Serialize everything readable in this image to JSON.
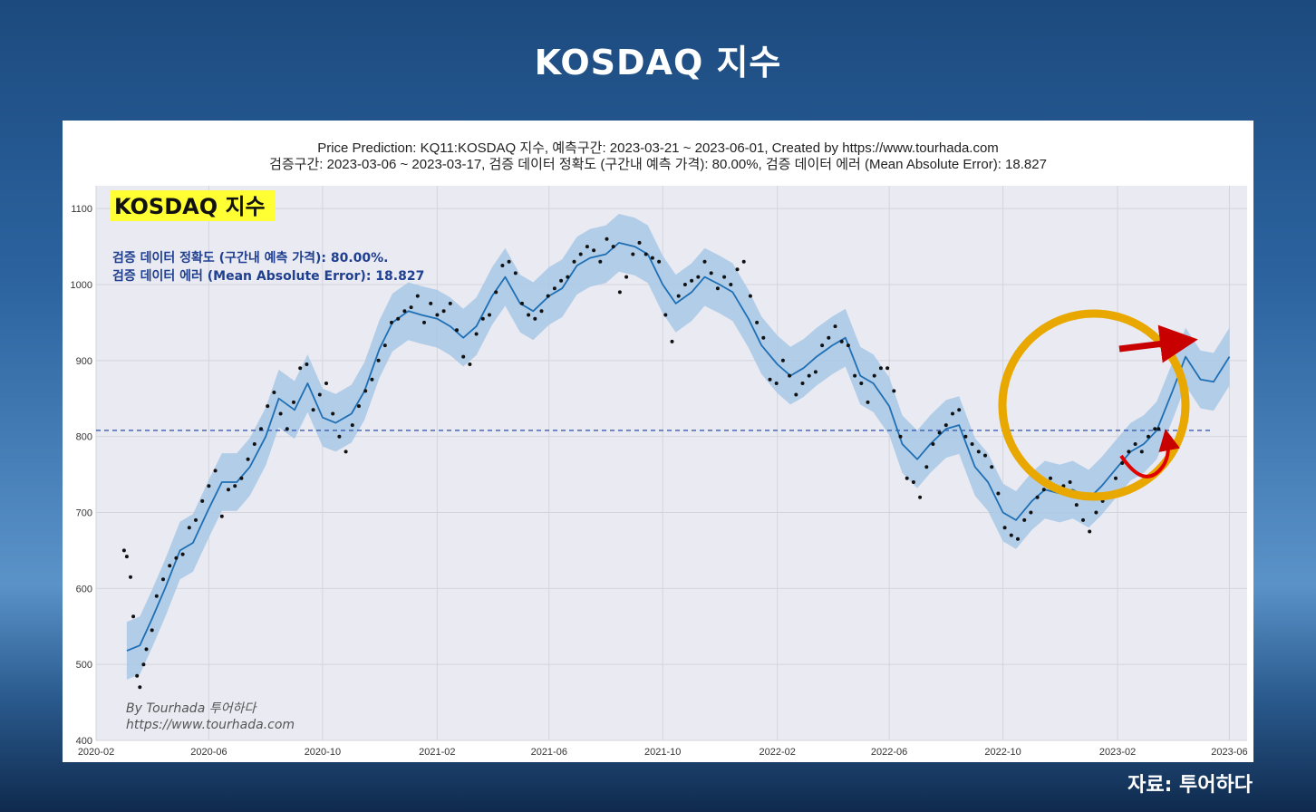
{
  "page": {
    "title": "KOSDAQ 지수",
    "source": "자료: 투어하다"
  },
  "chart_data": {
    "type": "line",
    "title_line1": "Price Prediction: KQ11:KOSDAQ 지수, 예측구간: 2023-03-21 ~ 2023-06-01, Created by https://www.tourhada.com",
    "title_line2": "검증구간: 2023-03-06 ~ 2023-03-17, 검증 데이터 정확도 (구간내 예측 가격): 80.00%, 검증 데이터 에러 (Mean Absolute Error): 18.827",
    "badge": "KOSDAQ 지수",
    "metric_line1": "검증 데이터 정확도 (구간내 예측 가격): 80.00%.",
    "metric_line2": "검증 데이터 에러 (Mean Absolute Error): 18.827",
    "watermark_line1": "By Tourhada 투어하다",
    "watermark_line2": "https://www.tourhada.com",
    "x_range": [
      "2020-02-01",
      "2023-06-20"
    ],
    "ylim": [
      400,
      1130
    ],
    "x_ticks": [
      "2020-02",
      "2020-06",
      "2020-10",
      "2021-02",
      "2021-06",
      "2021-10",
      "2022-02",
      "2022-06",
      "2022-10",
      "2023-02",
      "2023-06"
    ],
    "y_ticks": [
      400,
      500,
      600,
      700,
      800,
      900,
      1000,
      1100
    ],
    "reference_line": 808,
    "grid": true,
    "band_width": 38,
    "colors": {
      "prediction": "#1f6fb4",
      "band": "#a8c8e6",
      "actual": "#111111",
      "reference": "#3b5cad",
      "highlight_circle": "#e8a800",
      "arrow": "#c80000",
      "plot_bg": "#eaeaf2",
      "badge_bg": "#ffff33"
    },
    "prediction_series": [
      [
        "2020-03-05",
        518
      ],
      [
        "2020-03-19",
        525
      ],
      [
        "2020-04-01",
        560
      ],
      [
        "2020-04-15",
        600
      ],
      [
        "2020-05-01",
        650
      ],
      [
        "2020-05-15",
        660
      ],
      [
        "2020-06-01",
        705
      ],
      [
        "2020-06-15",
        740
      ],
      [
        "2020-07-01",
        740
      ],
      [
        "2020-07-15",
        760
      ],
      [
        "2020-08-01",
        800
      ],
      [
        "2020-08-15",
        850
      ],
      [
        "2020-09-01",
        835
      ],
      [
        "2020-09-15",
        870
      ],
      [
        "2020-10-01",
        825
      ],
      [
        "2020-10-15",
        818
      ],
      [
        "2020-11-01",
        830
      ],
      [
        "2020-11-15",
        860
      ],
      [
        "2020-12-01",
        915
      ],
      [
        "2020-12-15",
        950
      ],
      [
        "2021-01-01",
        965
      ],
      [
        "2021-01-15",
        960
      ],
      [
        "2021-02-01",
        955
      ],
      [
        "2021-02-15",
        945
      ],
      [
        "2021-03-01",
        930
      ],
      [
        "2021-03-15",
        945
      ],
      [
        "2021-04-01",
        985
      ],
      [
        "2021-04-15",
        1010
      ],
      [
        "2021-05-01",
        975
      ],
      [
        "2021-05-15",
        965
      ],
      [
        "2021-06-01",
        985
      ],
      [
        "2021-06-15",
        995
      ],
      [
        "2021-07-01",
        1025
      ],
      [
        "2021-07-15",
        1035
      ],
      [
        "2021-08-01",
        1040
      ],
      [
        "2021-08-15",
        1055
      ],
      [
        "2021-09-01",
        1050
      ],
      [
        "2021-09-15",
        1040
      ],
      [
        "2021-10-01",
        1000
      ],
      [
        "2021-10-15",
        975
      ],
      [
        "2021-11-01",
        990
      ],
      [
        "2021-11-15",
        1010
      ],
      [
        "2021-12-01",
        1000
      ],
      [
        "2021-12-15",
        990
      ],
      [
        "2022-01-01",
        955
      ],
      [
        "2022-01-15",
        920
      ],
      [
        "2022-02-01",
        895
      ],
      [
        "2022-02-15",
        880
      ],
      [
        "2022-03-01",
        890
      ],
      [
        "2022-03-15",
        905
      ],
      [
        "2022-04-01",
        920
      ],
      [
        "2022-04-15",
        930
      ],
      [
        "2022-05-01",
        880
      ],
      [
        "2022-05-15",
        870
      ],
      [
        "2022-06-01",
        840
      ],
      [
        "2022-06-15",
        790
      ],
      [
        "2022-07-01",
        770
      ],
      [
        "2022-07-15",
        790
      ],
      [
        "2022-08-01",
        810
      ],
      [
        "2022-08-15",
        815
      ],
      [
        "2022-09-01",
        760
      ],
      [
        "2022-09-15",
        740
      ],
      [
        "2022-10-01",
        700
      ],
      [
        "2022-10-15",
        690
      ],
      [
        "2022-11-01",
        715
      ],
      [
        "2022-11-15",
        730
      ],
      [
        "2022-12-01",
        725
      ],
      [
        "2022-12-15",
        730
      ],
      [
        "2023-01-01",
        718
      ],
      [
        "2023-01-15",
        735
      ],
      [
        "2023-02-01",
        760
      ],
      [
        "2023-02-15",
        780
      ],
      [
        "2023-03-01",
        790
      ],
      [
        "2023-03-15",
        808
      ],
      [
        "2023-04-01",
        860
      ],
      [
        "2023-04-15",
        905
      ],
      [
        "2023-05-01",
        875
      ],
      [
        "2023-05-15",
        872
      ],
      [
        "2023-06-01",
        905
      ]
    ],
    "actual_points": [
      [
        "2020-03-02",
        650
      ],
      [
        "2020-03-05",
        642
      ],
      [
        "2020-03-09",
        615
      ],
      [
        "2020-03-12",
        563
      ],
      [
        "2020-03-16",
        485
      ],
      [
        "2020-03-19",
        470
      ],
      [
        "2020-03-23",
        500
      ],
      [
        "2020-03-26",
        520
      ],
      [
        "2020-04-01",
        545
      ],
      [
        "2020-04-06",
        590
      ],
      [
        "2020-04-13",
        612
      ],
      [
        "2020-04-20",
        630
      ],
      [
        "2020-04-27",
        640
      ],
      [
        "2020-05-04",
        645
      ],
      [
        "2020-05-11",
        680
      ],
      [
        "2020-05-18",
        690
      ],
      [
        "2020-05-25",
        715
      ],
      [
        "2020-06-01",
        735
      ],
      [
        "2020-06-08",
        755
      ],
      [
        "2020-06-15",
        695
      ],
      [
        "2020-06-22",
        730
      ],
      [
        "2020-06-29",
        735
      ],
      [
        "2020-07-06",
        745
      ],
      [
        "2020-07-13",
        770
      ],
      [
        "2020-07-20",
        790
      ],
      [
        "2020-07-27",
        810
      ],
      [
        "2020-08-03",
        840
      ],
      [
        "2020-08-10",
        858
      ],
      [
        "2020-08-17",
        830
      ],
      [
        "2020-08-24",
        810
      ],
      [
        "2020-08-31",
        845
      ],
      [
        "2020-09-07",
        890
      ],
      [
        "2020-09-14",
        895
      ],
      [
        "2020-09-21",
        835
      ],
      [
        "2020-09-28",
        855
      ],
      [
        "2020-10-05",
        870
      ],
      [
        "2020-10-12",
        830
      ],
      [
        "2020-10-19",
        800
      ],
      [
        "2020-10-26",
        780
      ],
      [
        "2020-11-02",
        815
      ],
      [
        "2020-11-09",
        840
      ],
      [
        "2020-11-16",
        860
      ],
      [
        "2020-11-23",
        875
      ],
      [
        "2020-11-30",
        900
      ],
      [
        "2020-12-07",
        920
      ],
      [
        "2020-12-14",
        950
      ],
      [
        "2020-12-21",
        955
      ],
      [
        "2020-12-28",
        965
      ],
      [
        "2021-01-04",
        970
      ],
      [
        "2021-01-11",
        985
      ],
      [
        "2021-01-18",
        950
      ],
      [
        "2021-01-25",
        975
      ],
      [
        "2021-02-01",
        960
      ],
      [
        "2021-02-08",
        965
      ],
      [
        "2021-02-15",
        975
      ],
      [
        "2021-02-22",
        940
      ],
      [
        "2021-03-01",
        905
      ],
      [
        "2021-03-08",
        895
      ],
      [
        "2021-03-15",
        935
      ],
      [
        "2021-03-22",
        955
      ],
      [
        "2021-03-29",
        960
      ],
      [
        "2021-04-05",
        990
      ],
      [
        "2021-04-12",
        1025
      ],
      [
        "2021-04-19",
        1030
      ],
      [
        "2021-04-26",
        1015
      ],
      [
        "2021-05-03",
        975
      ],
      [
        "2021-05-10",
        960
      ],
      [
        "2021-05-17",
        955
      ],
      [
        "2021-05-24",
        965
      ],
      [
        "2021-05-31",
        985
      ],
      [
        "2021-06-07",
        995
      ],
      [
        "2021-06-14",
        1005
      ],
      [
        "2021-06-21",
        1010
      ],
      [
        "2021-06-28",
        1030
      ],
      [
        "2021-07-05",
        1040
      ],
      [
        "2021-07-12",
        1050
      ],
      [
        "2021-07-19",
        1045
      ],
      [
        "2021-07-26",
        1030
      ],
      [
        "2021-08-02",
        1060
      ],
      [
        "2021-08-09",
        1050
      ],
      [
        "2021-08-16",
        990
      ],
      [
        "2021-08-23",
        1010
      ],
      [
        "2021-08-30",
        1040
      ],
      [
        "2021-09-06",
        1055
      ],
      [
        "2021-09-13",
        1040
      ],
      [
        "2021-09-20",
        1035
      ],
      [
        "2021-09-27",
        1030
      ],
      [
        "2021-10-04",
        960
      ],
      [
        "2021-10-11",
        925
      ],
      [
        "2021-10-18",
        985
      ],
      [
        "2021-10-25",
        1000
      ],
      [
        "2021-11-01",
        1005
      ],
      [
        "2021-11-08",
        1010
      ],
      [
        "2021-11-15",
        1030
      ],
      [
        "2021-11-22",
        1015
      ],
      [
        "2021-11-29",
        995
      ],
      [
        "2021-12-06",
        1010
      ],
      [
        "2021-12-13",
        1000
      ],
      [
        "2021-12-20",
        1020
      ],
      [
        "2021-12-27",
        1030
      ],
      [
        "2022-01-03",
        985
      ],
      [
        "2022-01-10",
        950
      ],
      [
        "2022-01-17",
        930
      ],
      [
        "2022-01-24",
        875
      ],
      [
        "2022-01-31",
        870
      ],
      [
        "2022-02-07",
        900
      ],
      [
        "2022-02-14",
        880
      ],
      [
        "2022-02-21",
        855
      ],
      [
        "2022-02-28",
        870
      ],
      [
        "2022-03-07",
        880
      ],
      [
        "2022-03-14",
        885
      ],
      [
        "2022-03-21",
        920
      ],
      [
        "2022-03-28",
        930
      ],
      [
        "2022-04-04",
        945
      ],
      [
        "2022-04-11",
        925
      ],
      [
        "2022-04-18",
        920
      ],
      [
        "2022-04-25",
        880
      ],
      [
        "2022-05-02",
        870
      ],
      [
        "2022-05-09",
        845
      ],
      [
        "2022-05-16",
        880
      ],
      [
        "2022-05-23",
        890
      ],
      [
        "2022-05-30",
        890
      ],
      [
        "2022-06-06",
        860
      ],
      [
        "2022-06-13",
        800
      ],
      [
        "2022-06-20",
        745
      ],
      [
        "2022-06-27",
        740
      ],
      [
        "2022-07-04",
        720
      ],
      [
        "2022-07-11",
        760
      ],
      [
        "2022-07-18",
        790
      ],
      [
        "2022-07-25",
        805
      ],
      [
        "2022-08-01",
        815
      ],
      [
        "2022-08-08",
        830
      ],
      [
        "2022-08-15",
        835
      ],
      [
        "2022-08-22",
        800
      ],
      [
        "2022-08-29",
        790
      ],
      [
        "2022-09-05",
        780
      ],
      [
        "2022-09-12",
        775
      ],
      [
        "2022-09-19",
        760
      ],
      [
        "2022-09-26",
        725
      ],
      [
        "2022-10-03",
        680
      ],
      [
        "2022-10-10",
        670
      ],
      [
        "2022-10-17",
        665
      ],
      [
        "2022-10-24",
        690
      ],
      [
        "2022-10-31",
        700
      ],
      [
        "2022-11-07",
        720
      ],
      [
        "2022-11-14",
        730
      ],
      [
        "2022-11-21",
        745
      ],
      [
        "2022-11-28",
        730
      ],
      [
        "2022-12-05",
        735
      ],
      [
        "2022-12-12",
        740
      ],
      [
        "2022-12-19",
        710
      ],
      [
        "2022-12-26",
        690
      ],
      [
        "2023-01-02",
        675
      ],
      [
        "2023-01-09",
        700
      ],
      [
        "2023-01-16",
        715
      ],
      [
        "2023-01-23",
        720
      ],
      [
        "2023-01-30",
        745
      ],
      [
        "2023-02-06",
        765
      ],
      [
        "2023-02-13",
        780
      ],
      [
        "2023-02-20",
        790
      ],
      [
        "2023-02-27",
        780
      ],
      [
        "2023-03-06",
        800
      ],
      [
        "2023-03-13",
        810
      ],
      [
        "2023-03-17",
        810
      ]
    ]
  }
}
